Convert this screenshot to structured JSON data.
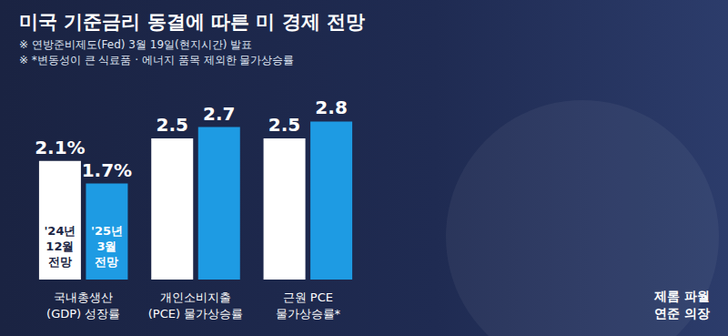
{
  "chart_data": {
    "type": "bar",
    "title": "미국 기준금리 동결에 따른 미 경제 전망",
    "subtitle": [
      "※ 연방준비제도(Fed) 3월 19일(현지시간) 발표",
      "※ *변동성이 큰 식료품 · 에너지 품목 제외한 물가상승률"
    ],
    "categories": [
      "국내총생산\n(GDP) 성장률",
      "개인소비지출\n(PCE) 물가상승률",
      "근원 PCE\n물가상승률*"
    ],
    "series": [
      {
        "name": "'24년 12월 전망",
        "color": "#ffffff",
        "values": [
          2.1,
          2.5,
          2.5
        ],
        "value_labels": [
          "2.1%",
          "2.5",
          "2.5"
        ]
      },
      {
        "name": "'25년 3월 전망",
        "color": "#1e9be3",
        "values": [
          1.7,
          2.7,
          2.8
        ],
        "value_labels": [
          "1.7%",
          "2.7",
          "2.8"
        ]
      }
    ],
    "ylim": [
      0,
      3
    ],
    "yticks": [
      0,
      3
    ],
    "grid": false,
    "data_labels": true,
    "tick_labels": "x",
    "annotations": [
      "제롬 파월\n연준 의장"
    ]
  }
}
